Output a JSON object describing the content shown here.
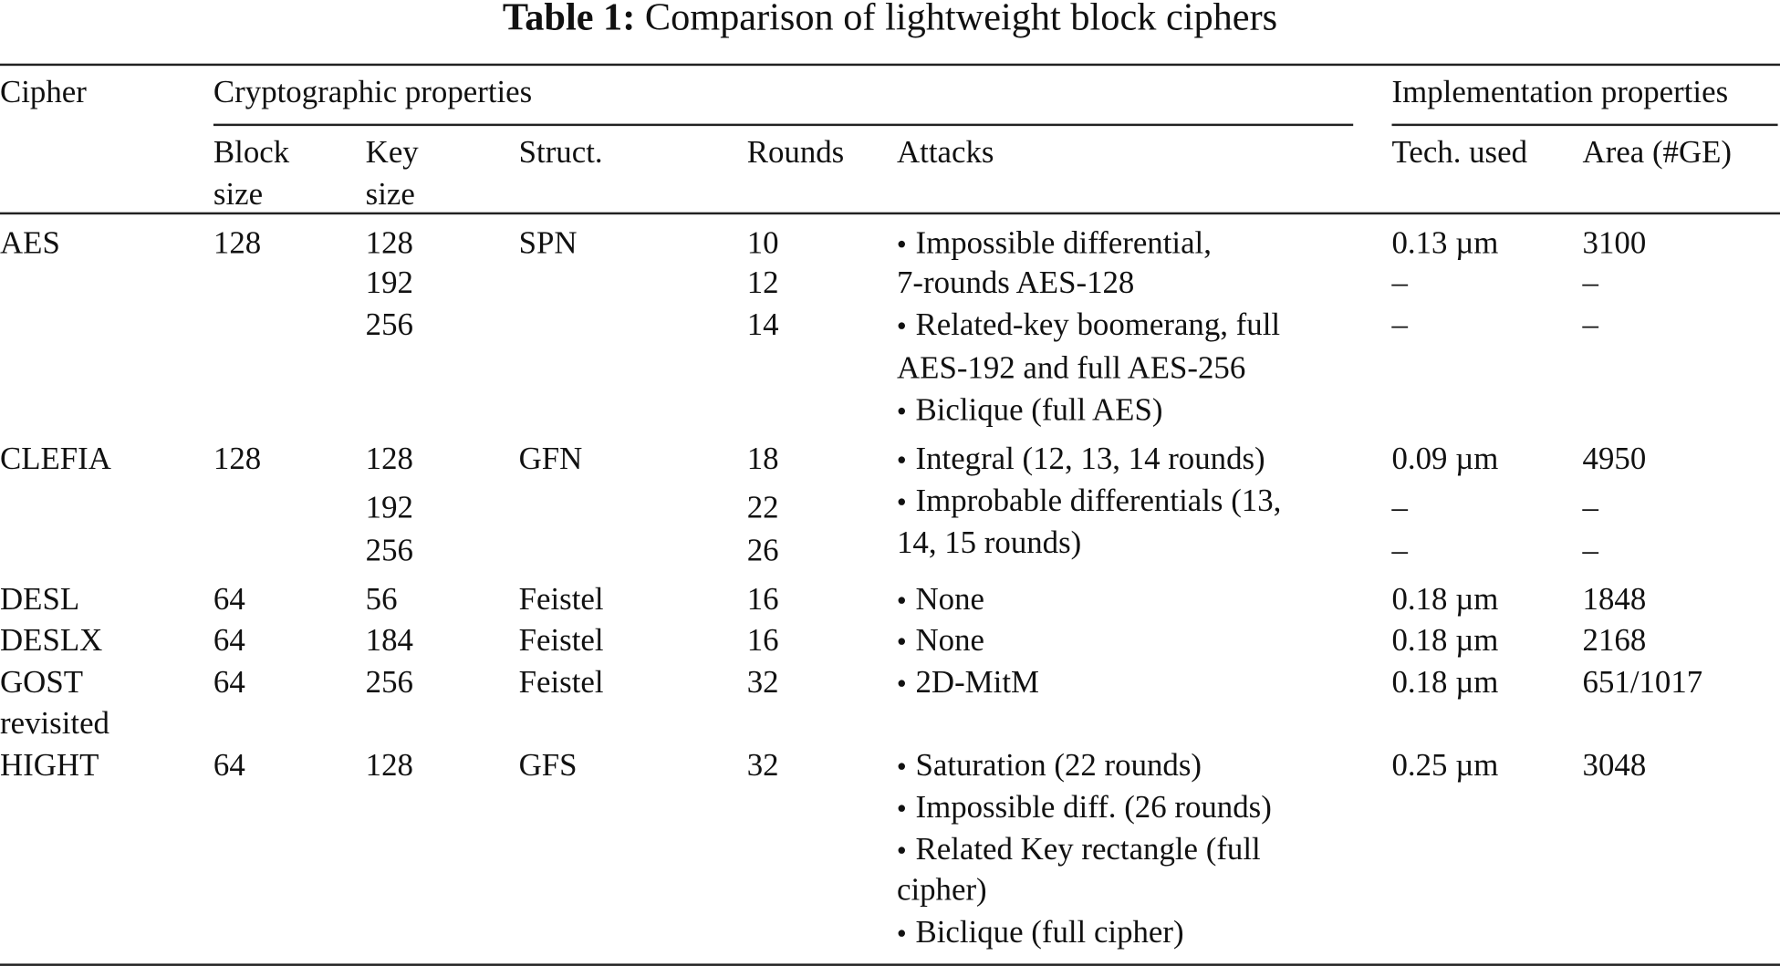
{
  "title": {
    "label": "Table 1:",
    "text": "Comparison of lightweight block ciphers"
  },
  "header": {
    "cipher": "Cipher",
    "group_crypto": "Cryptographic properties",
    "group_impl": "Implementation properties",
    "columns": {
      "block": [
        "Block",
        "size"
      ],
      "key": [
        "Key",
        "size"
      ],
      "struct": [
        "Struct."
      ],
      "rounds": [
        "Rounds"
      ],
      "attacks": [
        "Attacks"
      ],
      "tech": [
        "Tech. used"
      ],
      "area": [
        "Area (#GE)"
      ]
    }
  },
  "rows": [
    {
      "cipher": [
        "AES"
      ],
      "block": [
        "128"
      ],
      "key": [
        "128",
        "192",
        "256"
      ],
      "struct": [
        "SPN"
      ],
      "rounds": [
        "10",
        "12",
        "14"
      ],
      "attacks": [
        [
          "Impossible differential,",
          "7-rounds AES-128"
        ],
        [
          "Related-key boomerang, full",
          "AES-192 and full AES-256"
        ],
        [
          "Biclique (full AES)"
        ]
      ],
      "tech": [
        "0.13 µm",
        "–",
        "–"
      ],
      "area": [
        "3100",
        "–",
        "–"
      ]
    },
    {
      "cipher": [
        "CLEFIA"
      ],
      "block": [
        "128"
      ],
      "key": [
        "128",
        "192",
        "256"
      ],
      "struct": [
        "GFN"
      ],
      "rounds": [
        "18",
        "22",
        "26"
      ],
      "attacks": [
        [
          "Integral (12, 13, 14 rounds)"
        ],
        [
          "Improbable differentials (13,",
          "14, 15 rounds)"
        ]
      ],
      "tech": [
        "0.09 µm",
        "–",
        "–"
      ],
      "area": [
        "4950",
        "–",
        "–"
      ]
    },
    {
      "cipher": [
        "DESL"
      ],
      "block": [
        "64"
      ],
      "key": [
        "56"
      ],
      "struct": [
        "Feistel"
      ],
      "rounds": [
        "16"
      ],
      "attacks": [
        [
          "None"
        ]
      ],
      "tech": [
        "0.18 µm"
      ],
      "area": [
        "1848"
      ]
    },
    {
      "cipher": [
        "DESLX"
      ],
      "block": [
        "64"
      ],
      "key": [
        "184"
      ],
      "struct": [
        "Feistel"
      ],
      "rounds": [
        "16"
      ],
      "attacks": [
        [
          "None"
        ]
      ],
      "tech": [
        "0.18 µm"
      ],
      "area": [
        "2168"
      ]
    },
    {
      "cipher": [
        "GOST",
        "revisited"
      ],
      "block": [
        "64"
      ],
      "key": [
        "256"
      ],
      "struct": [
        "Feistel"
      ],
      "rounds": [
        "32"
      ],
      "attacks": [
        [
          "2D-MitM"
        ]
      ],
      "tech": [
        "0.18 µm"
      ],
      "area": [
        "651/1017"
      ]
    },
    {
      "cipher": [
        "HIGHT"
      ],
      "block": [
        "64"
      ],
      "key": [
        "128"
      ],
      "struct": [
        "GFS"
      ],
      "rounds": [
        "32"
      ],
      "attacks": [
        [
          "Saturation (22 rounds)"
        ],
        [
          "Impossible diff. (26 rounds)"
        ],
        [
          "Related Key rectangle (full",
          "cipher)"
        ],
        [
          "Biclique (full cipher)"
        ]
      ],
      "tech": [
        "0.25 µm"
      ],
      "area": [
        "3048"
      ]
    }
  ]
}
